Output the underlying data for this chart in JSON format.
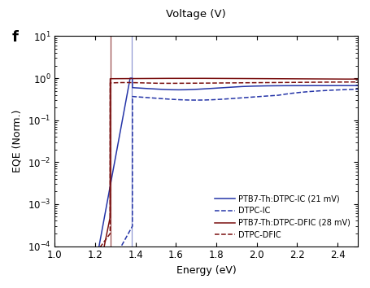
{
  "title_top": "Voltage (V)",
  "panel_label": "f",
  "xlabel": "Energy (eV)",
  "ylabel": "EQE (Norm.)",
  "xlim": [
    1.0,
    2.5
  ],
  "vline_blue": 1.38,
  "vline_red": 1.275,
  "blue_color": "#2535a8",
  "red_color": "#7a1010",
  "legend": [
    {
      "label": "PTB7-Th:DTPC-IC (21 mV)",
      "linestyle": "solid"
    },
    {
      "label": "DTPC-IC",
      "linestyle": "dashed"
    },
    {
      "label": "PTB7-Th:DTPC-DFIC (28 mV)",
      "linestyle": "solid"
    },
    {
      "label": "DTPC-DFIC",
      "linestyle": "dashed"
    }
  ]
}
